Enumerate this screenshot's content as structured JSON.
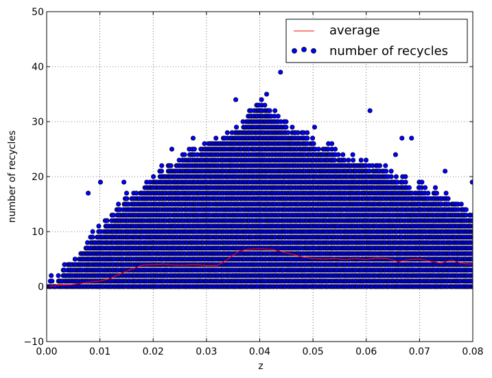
{
  "chart_data": {
    "type": "scatter",
    "xlabel": "z",
    "ylabel": "number of recycles",
    "xlim": [
      0.0,
      0.08
    ],
    "ylim": [
      -10,
      50
    ],
    "x_ticks": [
      "0.00",
      "0.01",
      "0.02",
      "0.03",
      "0.04",
      "0.05",
      "0.06",
      "0.07",
      "0.08"
    ],
    "y_ticks": [
      "−10",
      "0",
      "10",
      "20",
      "30",
      "40",
      "50"
    ],
    "grid": true,
    "legend_position": "top-right",
    "series": [
      {
        "name": "average",
        "type": "line",
        "color": "#ff0000",
        "x": [
          0.0,
          0.002,
          0.004,
          0.006,
          0.008,
          0.01,
          0.012,
          0.014,
          0.016,
          0.018,
          0.02,
          0.022,
          0.024,
          0.026,
          0.028,
          0.03,
          0.032,
          0.034,
          0.036,
          0.038,
          0.04,
          0.042,
          0.044,
          0.046,
          0.048,
          0.05,
          0.052,
          0.054,
          0.056,
          0.058,
          0.06,
          0.062,
          0.064,
          0.066,
          0.068,
          0.07,
          0.072,
          0.074,
          0.076,
          0.078,
          0.08
        ],
        "y": [
          0.0,
          0.2,
          0.3,
          0.5,
          0.8,
          1.0,
          1.5,
          2.4,
          3.2,
          3.9,
          4.0,
          4.1,
          3.9,
          3.9,
          4.0,
          3.8,
          3.8,
          5.0,
          6.4,
          6.8,
          6.9,
          6.8,
          6.4,
          5.9,
          5.4,
          5.1,
          5.0,
          5.1,
          4.9,
          5.1,
          4.9,
          5.2,
          5.1,
          4.5,
          4.9,
          5.0,
          4.6,
          4.3,
          4.8,
          4.2,
          4.1
        ]
      },
      {
        "name": "number of recycles",
        "type": "scatter",
        "color": "#0000ff",
        "upper_envelope": {
          "x": [
            0.0,
            0.004,
            0.008,
            0.012,
            0.016,
            0.02,
            0.024,
            0.028,
            0.032,
            0.036,
            0.04,
            0.044,
            0.048,
            0.052,
            0.056,
            0.06,
            0.064,
            0.068,
            0.072,
            0.076,
            0.08
          ],
          "y": [
            0,
            3,
            8,
            12,
            16,
            19,
            22,
            24,
            26,
            29,
            33,
            30,
            27,
            25,
            23,
            22,
            20,
            18,
            17,
            15,
            12
          ]
        },
        "outliers": [
          {
            "x": 0.0078,
            "y": 17
          },
          {
            "x": 0.0101,
            "y": 19
          },
          {
            "x": 0.0145,
            "y": 19
          },
          {
            "x": 0.0235,
            "y": 25
          },
          {
            "x": 0.0275,
            "y": 27
          },
          {
            "x": 0.0355,
            "y": 34
          },
          {
            "x": 0.0413,
            "y": 35
          },
          {
            "x": 0.0439,
            "y": 39
          },
          {
            "x": 0.0503,
            "y": 29
          },
          {
            "x": 0.0607,
            "y": 32
          },
          {
            "x": 0.0655,
            "y": 24
          },
          {
            "x": 0.0667,
            "y": 27
          },
          {
            "x": 0.0685,
            "y": 27
          },
          {
            "x": 0.0748,
            "y": 21
          },
          {
            "x": 0.0799,
            "y": 19
          }
        ]
      }
    ]
  }
}
